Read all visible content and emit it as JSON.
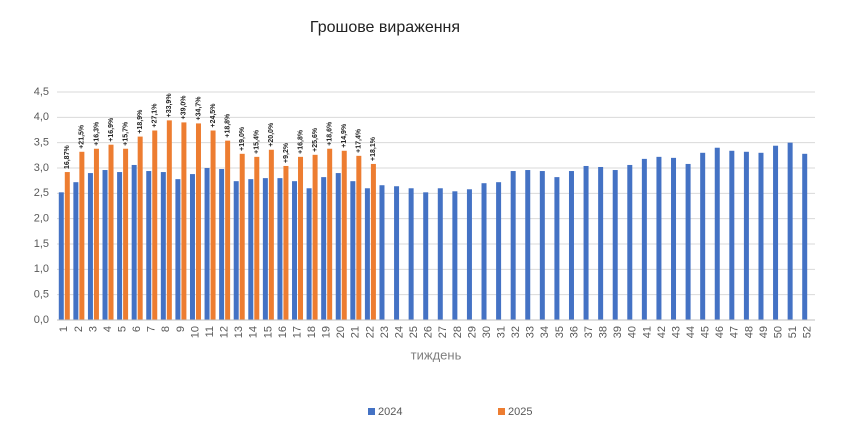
{
  "chart_data": {
    "type": "bar",
    "title": "Грошове вираження",
    "x_label": "тиждень",
    "categories": [
      "1",
      "2",
      "3",
      "4",
      "5",
      "6",
      "7",
      "8",
      "9",
      "10",
      "11",
      "12",
      "13",
      "14",
      "15",
      "16",
      "17",
      "18",
      "19",
      "20",
      "21",
      "22",
      "23",
      "24",
      "25",
      "26",
      "27",
      "28",
      "29",
      "30",
      "31",
      "32",
      "33",
      "34",
      "35",
      "36",
      "37",
      "38",
      "39",
      "40",
      "41",
      "42",
      "43",
      "44",
      "45",
      "46",
      "47",
      "48",
      "49",
      "50",
      "51",
      "52"
    ],
    "series": [
      {
        "name": "2024",
        "color": "#4472c4",
        "values": [
          2.52,
          2.72,
          2.9,
          2.96,
          2.92,
          3.06,
          2.94,
          2.92,
          2.78,
          2.88,
          3.0,
          2.98,
          2.74,
          2.78,
          2.8,
          2.8,
          2.74,
          2.6,
          2.82,
          2.9,
          2.74,
          2.6,
          2.66,
          2.64,
          2.6,
          2.52,
          2.6,
          2.54,
          2.58,
          2.7,
          2.72,
          2.94,
          2.96,
          2.94,
          2.82,
          2.94,
          3.04,
          3.02,
          2.96,
          3.06,
          3.18,
          3.22,
          3.2,
          3.08,
          3.3,
          3.4,
          3.34,
          3.32,
          3.3,
          3.44,
          3.5,
          3.28
        ]
      },
      {
        "name": "2025",
        "color": "#ed7d31",
        "values": [
          2.92,
          3.32,
          3.38,
          3.46,
          3.38,
          3.62,
          3.74,
          3.94,
          3.9,
          3.88,
          3.74,
          3.54,
          3.28,
          3.22,
          3.36,
          3.04,
          3.22,
          3.26,
          3.38,
          3.34,
          3.24,
          3.08,
          null,
          null,
          null,
          null,
          null,
          null,
          null,
          null,
          null,
          null,
          null,
          null,
          null,
          null,
          null,
          null,
          null,
          null,
          null,
          null,
          null,
          null,
          null,
          null,
          null,
          null,
          null,
          null,
          null,
          null
        ],
        "annotations": [
          "16,87%",
          "+21,5%",
          "+16,3%",
          "+16,9%",
          "+15,7%",
          "+18,9%",
          "+27,1%",
          "+33,9%",
          "+39,0%",
          "+34,7%",
          "+24,5%",
          "+18,8%",
          "+19,0%",
          "+15,4%",
          "+20,0%",
          "+9,2%",
          "+16,8%",
          "+25,6%",
          "+18,6%",
          "+14,9%",
          "+17,4%",
          "+18,1%"
        ]
      }
    ],
    "ylim": [
      0,
      4.5
    ],
    "yticks": [
      {
        "value": 0,
        "label": "0,0"
      },
      {
        "value": 0.5,
        "label": "0,5"
      },
      {
        "value": 1,
        "label": "1,0"
      },
      {
        "value": 1.5,
        "label": "1,5"
      },
      {
        "value": 2,
        "label": "2,0"
      },
      {
        "value": 2.5,
        "label": "2,5"
      },
      {
        "value": 3,
        "label": "3,0"
      },
      {
        "value": 3.5,
        "label": "3,5"
      },
      {
        "value": 4,
        "label": "4,0"
      },
      {
        "value": 4.5,
        "label": "4,5"
      }
    ],
    "grid": true,
    "legend": "bottom"
  }
}
